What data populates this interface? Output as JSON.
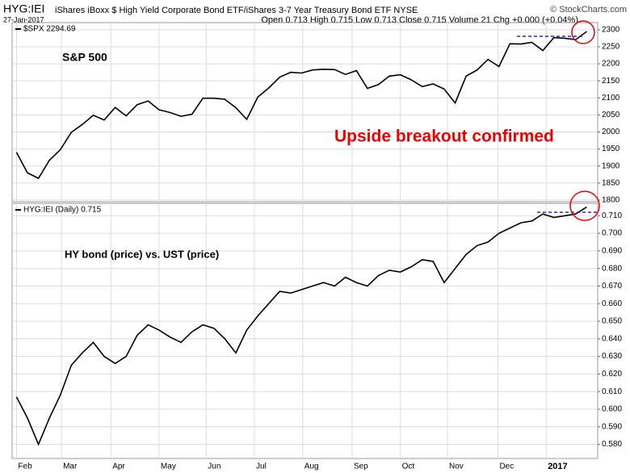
{
  "header": {
    "symbol": "HYG:IEI",
    "description": "iShares iBoxx $ High Yield Corporate Bond ETF/iShares 3-7 Year Treasury Bond ETF NYSE",
    "date": "27-Jan-2017",
    "quote": "Open 0.713 High 0.715 Low 0.713 Close 0.715 Volume 21 Chg +0.000 (+0.04%)",
    "credit": "© StockCharts.com"
  },
  "chart_data": [
    {
      "type": "line",
      "annotations": [
        "S&P 500",
        "Upside breakout confirmed"
      ],
      "series": [
        {
          "name": "$SPX 2294.69",
          "color": "#000000",
          "values": [
            1940,
            1880,
            1864,
            1917,
            1948,
            1999,
            2022,
            2049,
            2035,
            2072,
            2047,
            2080,
            2091,
            2065,
            2057,
            2046,
            2052,
            2099,
            2099,
            2096,
            2071,
            2037,
            2102,
            2129,
            2161,
            2175,
            2173,
            2182,
            2184,
            2183,
            2169,
            2180,
            2128,
            2139,
            2164,
            2168,
            2153,
            2133,
            2141,
            2126,
            2085,
            2164,
            2182,
            2213,
            2192,
            2259,
            2258,
            2263,
            2239,
            2277,
            2275,
            2271,
            2295
          ]
        }
      ],
      "ylim": [
        1795,
        2321
      ],
      "yticks": [
        1800,
        1850,
        1900,
        1950,
        2000,
        2050,
        2100,
        2150,
        2200,
        2250,
        2300
      ],
      "grid": true
    },
    {
      "type": "line",
      "annotations": [
        "HY bond (price) vs. UST (price)"
      ],
      "series": [
        {
          "name": "HYG:IEI (Daily) 0.715",
          "color": "#000000",
          "values": [
            0.607,
            0.595,
            0.58,
            0.595,
            0.608,
            0.625,
            0.632,
            0.638,
            0.63,
            0.626,
            0.63,
            0.642,
            0.648,
            0.645,
            0.641,
            0.638,
            0.644,
            0.648,
            0.646,
            0.64,
            0.632,
            0.645,
            0.653,
            0.66,
            0.667,
            0.666,
            0.668,
            0.67,
            0.672,
            0.67,
            0.675,
            0.672,
            0.67,
            0.676,
            0.679,
            0.678,
            0.681,
            0.685,
            0.684,
            0.672,
            0.68,
            0.688,
            0.693,
            0.695,
            0.7,
            0.703,
            0.706,
            0.707,
            0.711,
            0.709,
            0.71,
            0.711,
            0.715
          ]
        }
      ],
      "ylim": [
        0.572,
        0.717
      ],
      "yticks": [
        {
          "value": 0.58,
          "label": "0.580"
        },
        {
          "value": 0.59,
          "label": "0.590"
        },
        {
          "value": 0.6,
          "label": "0.600"
        },
        {
          "value": 0.61,
          "label": "0.610"
        },
        {
          "value": 0.62,
          "label": "0.620"
        },
        {
          "value": 0.63,
          "label": "0.630"
        },
        {
          "value": 0.64,
          "label": "0.640"
        },
        {
          "value": 0.65,
          "label": "0.650"
        },
        {
          "value": 0.66,
          "label": "0.660"
        },
        {
          "value": 0.67,
          "label": "0.670"
        },
        {
          "value": 0.68,
          "label": "0.680"
        },
        {
          "value": 0.69,
          "label": "0.690"
        },
        {
          "value": 0.7,
          "label": "0.700"
        },
        {
          "value": 0.71,
          "label": "0.710"
        }
      ],
      "xlim": [
        -0.4,
        53
      ],
      "xticks": [
        {
          "value": 0,
          "label": "Feb"
        },
        {
          "value": 4.1,
          "label": "Mar"
        },
        {
          "value": 8.6,
          "label": "Apr"
        },
        {
          "value": 13,
          "label": "May"
        },
        {
          "value": 17.3,
          "label": "Jun"
        },
        {
          "value": 21.7,
          "label": "Jul"
        },
        {
          "value": 26.1,
          "label": "Aug"
        },
        {
          "value": 30.6,
          "label": "Sep"
        },
        {
          "value": 35,
          "label": "Oct"
        },
        {
          "value": 39.3,
          "label": "Nov"
        },
        {
          "value": 43.9,
          "label": "Dec"
        },
        {
          "value": 48.3,
          "label": "2017"
        }
      ],
      "grid": true
    }
  ]
}
